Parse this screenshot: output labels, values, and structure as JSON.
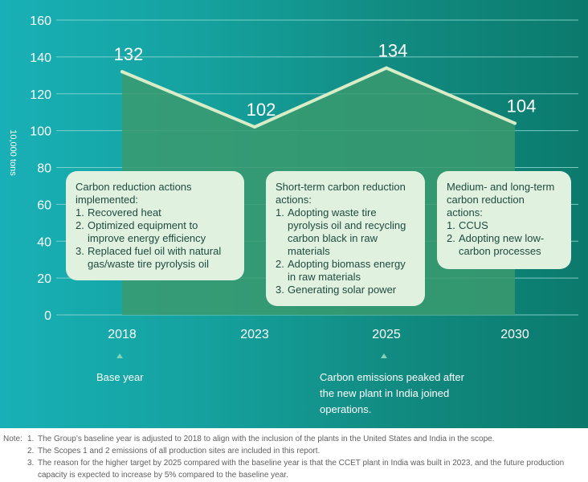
{
  "chart_data": {
    "type": "line",
    "categories": [
      "2018",
      "2023",
      "2025",
      "2030"
    ],
    "values": [
      132,
      102,
      134,
      104
    ],
    "data_labels": [
      "132",
      "102",
      "134",
      "104"
    ],
    "ylabel": "10,000 tons",
    "ylim": [
      0,
      160
    ],
    "y_ticks": [
      0,
      20,
      40,
      60,
      80,
      100,
      120,
      140,
      160
    ],
    "grid": true,
    "colors": {
      "line": "#d8ecc8",
      "area": "#3a9a6e",
      "gridline": "#8ed6cf",
      "text": "#ffffff",
      "callout_bg": "#e1f1df"
    }
  },
  "callouts": [
    {
      "heading": "Carbon reduction actions implemented:",
      "items": [
        {
          "num": "1.",
          "text": "Recovered heat"
        },
        {
          "num": "2.",
          "text": "Optimized equipment to improve energy efficiency"
        },
        {
          "num": "3.",
          "text": "Replaced fuel oil with natural gas/waste tire pyrolysis oil"
        }
      ]
    },
    {
      "heading": "Short-term carbon reduction actions:",
      "items": [
        {
          "num": "1.",
          "text": "Adopting waste tire pyrolysis oil and recycling carbon black in raw materials"
        },
        {
          "num": "2.",
          "text": "Adopting biomass energy in raw materials"
        },
        {
          "num": "3.",
          "text": "Generating solar power"
        }
      ]
    },
    {
      "heading": "Medium- and long-term carbon reduction actions:",
      "items": [
        {
          "num": "1.",
          "text": "CCUS"
        },
        {
          "num": "2.",
          "text": "Adopting new low-carbon processes"
        }
      ]
    }
  ],
  "annotations": {
    "base_year": "Base year",
    "peak": "Carbon emissions peaked after the new plant in India joined operations."
  },
  "notes": {
    "label": "Note:",
    "items": [
      {
        "num": "1.",
        "text": "The Group’s baseline year is adjusted to 2018 to align with the inclusion of the plants in the United States and India in the scope."
      },
      {
        "num": "2.",
        "text": "The Scopes 1 and 2 emissions of all production sites are included in this report."
      },
      {
        "num": "3.",
        "text": "The reason for the higher target by 2025 compared with the baseline year is that the CCET plant in India was built in 2023, and the future production capacity is expected to increase by 5% compared to the baseline year."
      }
    ]
  }
}
